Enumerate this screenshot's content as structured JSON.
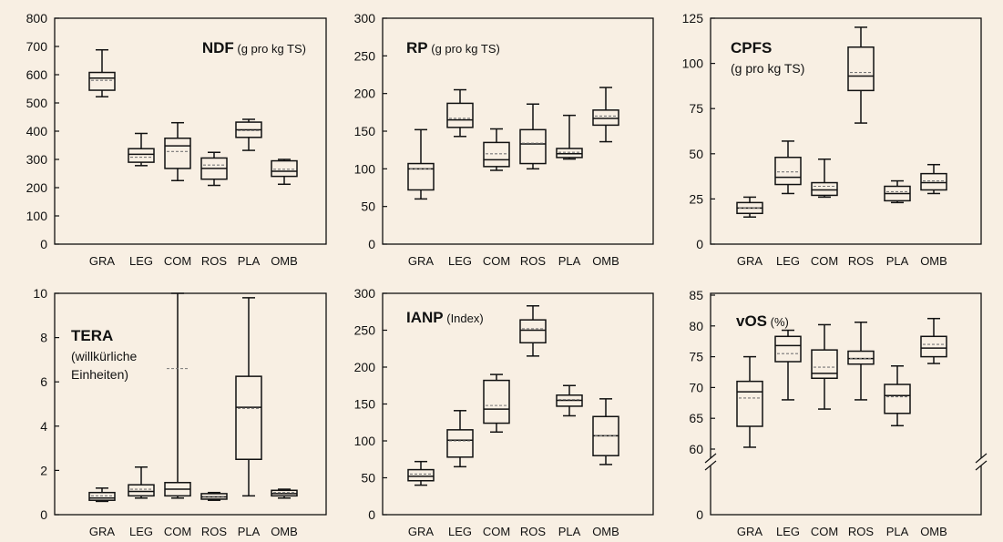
{
  "chart_data": [
    {
      "type": "box",
      "title": "NDF",
      "subtitle": "(g pro kg TS)",
      "note": [],
      "ylim": [
        0,
        800
      ],
      "yticks": [
        0,
        100,
        200,
        300,
        400,
        500,
        600,
        700,
        800
      ],
      "categories": [
        "GRA",
        "LEG",
        "COM",
        "ROS",
        "PLA",
        "OMB"
      ],
      "boxes": [
        {
          "min": 522,
          "q1": 545,
          "median": 588,
          "mean": 580,
          "q3": 608,
          "max": 688
        },
        {
          "min": 278,
          "q1": 290,
          "median": 318,
          "mean": 308,
          "q3": 338,
          "max": 392
        },
        {
          "min": 225,
          "q1": 268,
          "median": 348,
          "mean": 328,
          "q3": 375,
          "max": 430
        },
        {
          "min": 208,
          "q1": 230,
          "median": 268,
          "mean": 280,
          "q3": 305,
          "max": 325
        },
        {
          "min": 332,
          "q1": 378,
          "median": 405,
          "mean": 402,
          "q3": 432,
          "max": 442
        },
        {
          "min": 212,
          "q1": 240,
          "median": 258,
          "mean": 265,
          "q3": 295,
          "max": 300
        }
      ]
    },
    {
      "type": "box",
      "title": "RP",
      "subtitle": "(g pro kg TS)",
      "note": [],
      "ylim": [
        0,
        300
      ],
      "yticks": [
        0,
        50,
        100,
        150,
        200,
        250,
        300
      ],
      "categories": [
        "GRA",
        "LEG",
        "COM",
        "ROS",
        "PLA",
        "OMB"
      ],
      "boxes": [
        {
          "min": 60,
          "q1": 72,
          "median": 100,
          "mean": 100,
          "q3": 107,
          "max": 152
        },
        {
          "min": 143,
          "q1": 155,
          "median": 165,
          "mean": 167,
          "q3": 187,
          "max": 205
        },
        {
          "min": 98,
          "q1": 103,
          "median": 112,
          "mean": 120,
          "q3": 135,
          "max": 153
        },
        {
          "min": 100,
          "q1": 107,
          "median": 133,
          "mean": 134,
          "q3": 152,
          "max": 186
        },
        {
          "min": 113,
          "q1": 115,
          "median": 120,
          "mean": 122,
          "q3": 127,
          "max": 171
        },
        {
          "min": 136,
          "q1": 158,
          "median": 167,
          "mean": 170,
          "q3": 178,
          "max": 208
        }
      ]
    },
    {
      "type": "box",
      "title": "CPFS",
      "subtitle": "",
      "note": [
        "(g pro kg TS)"
      ],
      "ylim": [
        0,
        125
      ],
      "yticks": [
        0,
        25,
        50,
        75,
        100,
        125
      ],
      "categories": [
        "GRA",
        "LEG",
        "COM",
        "ROS",
        "PLA",
        "OMB"
      ],
      "boxes": [
        {
          "min": 15,
          "q1": 17,
          "median": 20,
          "mean": 20,
          "q3": 23,
          "max": 26
        },
        {
          "min": 28,
          "q1": 33,
          "median": 37,
          "mean": 40,
          "q3": 48,
          "max": 57
        },
        {
          "min": 26,
          "q1": 27,
          "median": 30,
          "mean": 32,
          "q3": 34,
          "max": 47
        },
        {
          "min": 67,
          "q1": 85,
          "median": 93,
          "mean": 95,
          "q3": 109,
          "max": 120
        },
        {
          "min": 23,
          "q1": 24,
          "median": 28,
          "mean": 29,
          "q3": 32,
          "max": 35
        },
        {
          "min": 28,
          "q1": 30,
          "median": 34,
          "mean": 35,
          "q3": 39,
          "max": 44
        }
      ]
    },
    {
      "type": "box",
      "title": "TERA",
      "subtitle": "",
      "note": [
        "(willkürliche",
        "Einheiten)"
      ],
      "ylim": [
        0,
        10
      ],
      "yticks": [
        0,
        2,
        4,
        6,
        8,
        10
      ],
      "categories": [
        "GRA",
        "LEG",
        "COM",
        "ROS",
        "PLA",
        "OMB"
      ],
      "boxes": [
        {
          "min": 0.6,
          "q1": 0.65,
          "median": 0.75,
          "mean": 0.85,
          "q3": 1.0,
          "max": 1.2
        },
        {
          "min": 0.75,
          "q1": 0.85,
          "median": 1.05,
          "mean": 1.15,
          "q3": 1.35,
          "max": 2.15
        },
        {
          "min": 0.75,
          "q1": 0.85,
          "median": 1.15,
          "mean": 6.6,
          "q3": 1.45,
          "max": 10
        },
        {
          "min": 0.65,
          "q1": 0.7,
          "median": 0.8,
          "mean": 0.82,
          "q3": 0.95,
          "max": 1.0
        },
        {
          "min": 0.85,
          "q1": 2.5,
          "median": 4.85,
          "mean": 4.8,
          "q3": 6.25,
          "max": 9.8
        },
        {
          "min": 0.75,
          "q1": 0.85,
          "median": 0.95,
          "mean": 1.0,
          "q3": 1.1,
          "max": 1.15
        }
      ]
    },
    {
      "type": "box",
      "title": "IANP",
      "subtitle": "(Index)",
      "note": [],
      "ylim": [
        0,
        300
      ],
      "yticks": [
        0,
        50,
        100,
        150,
        200,
        250,
        300
      ],
      "categories": [
        "GRA",
        "LEG",
        "COM",
        "ROS",
        "PLA",
        "OMB"
      ],
      "boxes": [
        {
          "min": 40,
          "q1": 46,
          "median": 52,
          "mean": 55,
          "q3": 61,
          "max": 72
        },
        {
          "min": 65,
          "q1": 78,
          "median": 101,
          "mean": 100,
          "q3": 115,
          "max": 141
        },
        {
          "min": 112,
          "q1": 124,
          "median": 143,
          "mean": 148,
          "q3": 182,
          "max": 190
        },
        {
          "min": 215,
          "q1": 233,
          "median": 250,
          "mean": 252,
          "q3": 264,
          "max": 283
        },
        {
          "min": 134,
          "q1": 147,
          "median": 155,
          "mean": 156,
          "q3": 162,
          "max": 175
        },
        {
          "min": 68,
          "q1": 80,
          "median": 107,
          "mean": 107,
          "q3": 133,
          "max": 157
        }
      ]
    },
    {
      "type": "box",
      "title": "vOS",
      "subtitle": "(%)",
      "note": [],
      "axis_break": true,
      "ylim": [
        60,
        85
      ],
      "yticks": [
        60,
        65,
        70,
        75,
        80,
        85
      ],
      "zero_label": "0",
      "categories": [
        "GRA",
        "LEG",
        "COM",
        "ROS",
        "PLA",
        "OMB"
      ],
      "boxes": [
        {
          "min": 60.3,
          "q1": 63.7,
          "median": 69.3,
          "mean": 68.3,
          "q3": 71.0,
          "max": 75.0
        },
        {
          "min": 68.0,
          "q1": 74.2,
          "median": 76.8,
          "mean": 75.5,
          "q3": 78.3,
          "max": 79.3
        },
        {
          "min": 66.5,
          "q1": 71.5,
          "median": 72.3,
          "mean": 73.3,
          "q3": 76.1,
          "max": 80.2
        },
        {
          "min": 68.0,
          "q1": 73.8,
          "median": 74.7,
          "mean": 74.7,
          "q3": 75.9,
          "max": 80.6
        },
        {
          "min": 63.8,
          "q1": 65.8,
          "median": 68.7,
          "mean": 68.5,
          "q3": 70.5,
          "max": 73.5
        },
        {
          "min": 73.9,
          "q1": 75.0,
          "median": 76.4,
          "mean": 77.0,
          "q3": 78.3,
          "max": 81.2
        }
      ]
    }
  ]
}
